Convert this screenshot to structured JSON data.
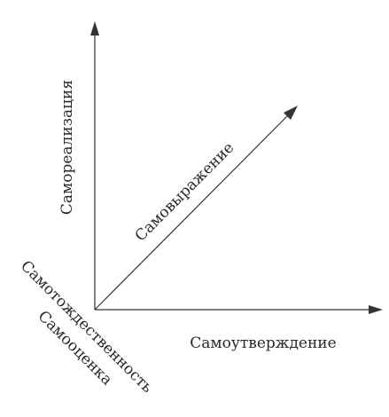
{
  "labels": {
    "vertical_axis": "Самореализация",
    "horizontal_axis": "Самоутверждение",
    "diagonal_axis": "Самовыражение",
    "lower_left_line1": "Самотождественность",
    "lower_left_line2": "Самооценка"
  },
  "colors": {
    "line": "#333333",
    "text": "#2a2a2a",
    "background": "#ffffff"
  }
}
